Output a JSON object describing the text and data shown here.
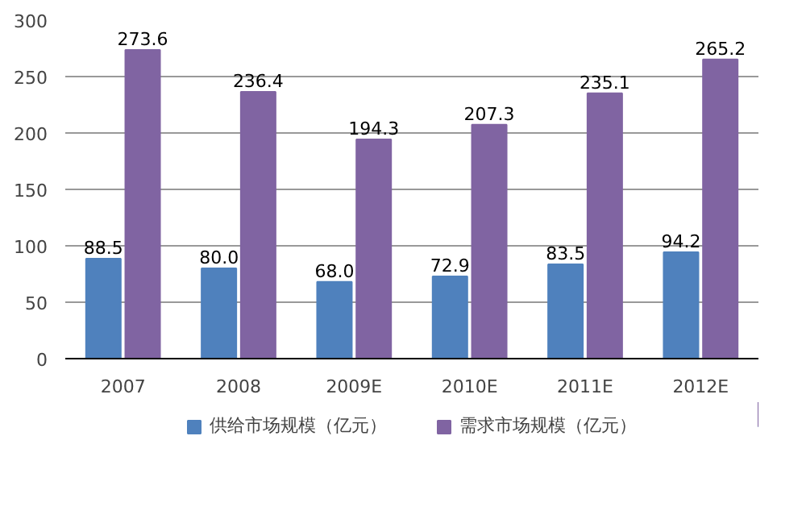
{
  "chart_data": {
    "type": "bar",
    "categories": [
      "2007",
      "2008",
      "2009E",
      "2010E",
      "2011E",
      "2012E"
    ],
    "series": [
      {
        "name": "供给市场规模（亿元）",
        "color": "#4f81bd",
        "values": [
          88.5,
          80.0,
          68.0,
          72.9,
          83.5,
          94.2
        ],
        "value_labels": [
          "88.5",
          "80.0",
          "68.0",
          "72.9",
          "83.5",
          "94.2"
        ]
      },
      {
        "name": "需求市场规模（亿元）",
        "color": "#8064a2",
        "values": [
          273.6,
          236.4,
          194.3,
          207.3,
          235.1,
          265.2
        ],
        "value_labels": [
          "273.6",
          "236.4",
          "194.3",
          "207.3",
          "235.1",
          "265.2"
        ]
      }
    ],
    "ylim": [
      0,
      300
    ],
    "yticks": [
      0,
      50,
      100,
      150,
      200,
      250,
      300
    ],
    "grid": "y",
    "legend": "bottom"
  }
}
